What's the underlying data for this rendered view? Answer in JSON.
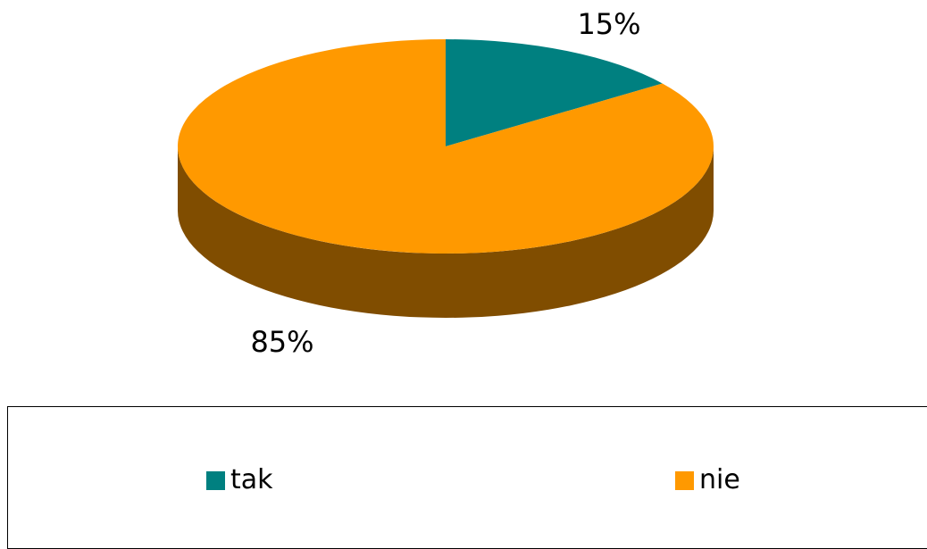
{
  "chart_data": {
    "type": "pie",
    "style": "3d",
    "categories": [
      "tak",
      "nie"
    ],
    "values": [
      15,
      85
    ],
    "data_labels": [
      "15%",
      "85%"
    ],
    "colors": [
      "#008080",
      "#FF9900"
    ],
    "side_colors": [
      "#004D4D",
      "#804D00"
    ],
    "legend_position": "bottom"
  },
  "legend": {
    "items": [
      {
        "label": "tak",
        "color": "#008080"
      },
      {
        "label": "nie",
        "color": "#FF9900"
      }
    ]
  }
}
